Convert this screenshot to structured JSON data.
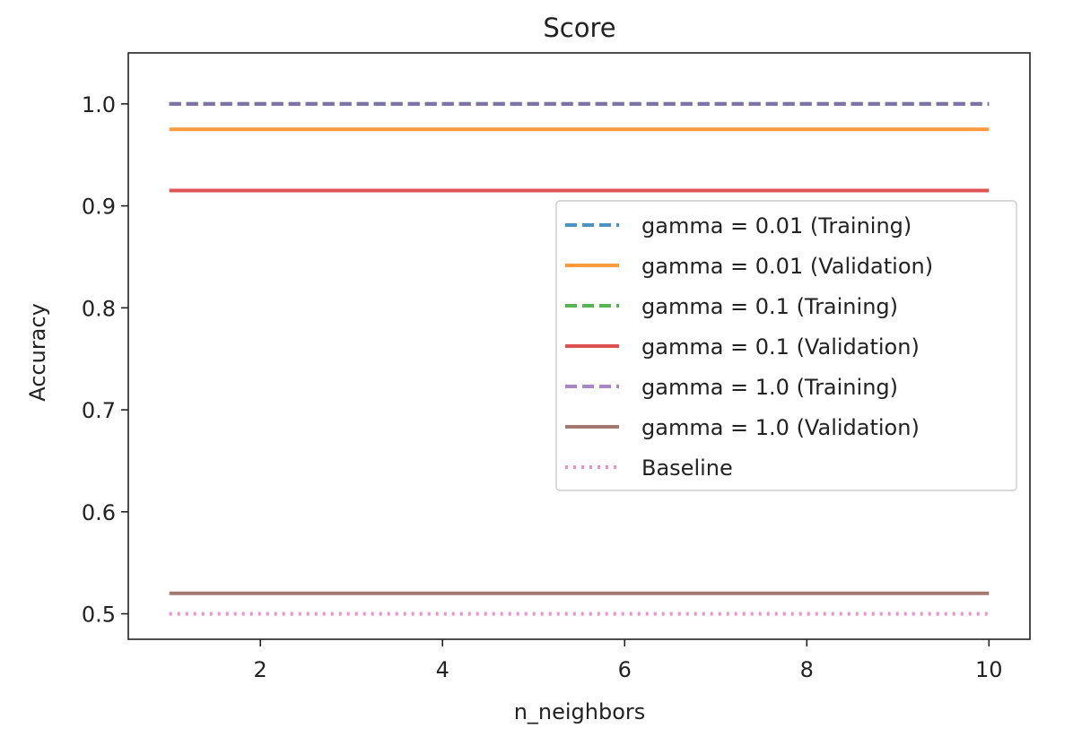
{
  "chart_data": {
    "type": "line",
    "title": "Score",
    "xlabel": "n_neighbors",
    "ylabel": "Accuracy",
    "xlim": [
      0.55,
      10.45
    ],
    "ylim": [
      0.475,
      1.05
    ],
    "xticks": [
      2,
      4,
      6,
      8,
      10
    ],
    "yticks": [
      0.5,
      0.6,
      0.7,
      0.8,
      0.9,
      1.0
    ],
    "xtick_labels": [
      "2",
      "4",
      "6",
      "8",
      "10"
    ],
    "ytick_labels": [
      "0.5",
      "0.6",
      "0.7",
      "0.8",
      "0.9",
      "1.0"
    ],
    "grid": false,
    "legend_position": "right",
    "x": [
      1,
      2,
      3,
      4,
      5,
      6,
      7,
      8,
      9,
      10
    ],
    "series": [
      {
        "name": "gamma = 0.01 (Training)",
        "values": [
          1.0,
          1.0,
          1.0,
          1.0,
          1.0,
          1.0,
          1.0,
          1.0,
          1.0,
          1.0
        ],
        "color": "#1f77b4",
        "style": "dashed"
      },
      {
        "name": "gamma = 0.01 (Validation)",
        "values": [
          0.975,
          0.975,
          0.975,
          0.975,
          0.975,
          0.975,
          0.975,
          0.975,
          0.975,
          0.975
        ],
        "color": "#ff7f0e",
        "style": "solid"
      },
      {
        "name": "gamma = 0.1 (Training)",
        "values": [
          1.0,
          1.0,
          1.0,
          1.0,
          1.0,
          1.0,
          1.0,
          1.0,
          1.0,
          1.0
        ],
        "color": "#2ca02c",
        "style": "dashed"
      },
      {
        "name": "gamma = 0.1 (Validation)",
        "values": [
          0.915,
          0.915,
          0.915,
          0.915,
          0.915,
          0.915,
          0.915,
          0.915,
          0.915,
          0.915
        ],
        "color": "#d62728",
        "style": "solid"
      },
      {
        "name": "gamma = 1.0 (Training)",
        "values": [
          1.0,
          1.0,
          1.0,
          1.0,
          1.0,
          1.0,
          1.0,
          1.0,
          1.0,
          1.0
        ],
        "color": "#9467bd",
        "style": "dashed"
      },
      {
        "name": "gamma = 1.0 (Validation)",
        "values": [
          0.52,
          0.52,
          0.52,
          0.52,
          0.52,
          0.52,
          0.52,
          0.52,
          0.52,
          0.52
        ],
        "color": "#8c564b",
        "style": "solid"
      },
      {
        "name": "Baseline",
        "values": [
          0.5,
          0.5,
          0.5,
          0.5,
          0.5,
          0.5,
          0.5,
          0.5,
          0.5,
          0.5
        ],
        "color": "#e377c2",
        "style": "dotted"
      }
    ]
  }
}
